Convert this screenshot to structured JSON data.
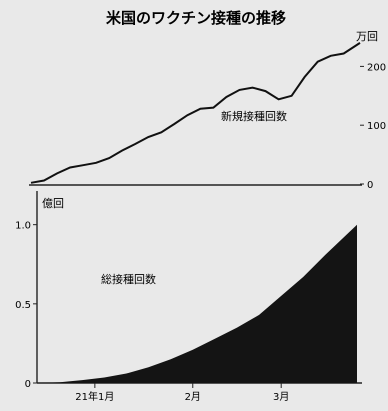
{
  "title": "米国のワクチン接種の推移",
  "chart_data": [
    {
      "type": "line",
      "series_label": "新規接種回数",
      "unit": "万回",
      "y_ticks": [
        "0",
        "100",
        "200"
      ],
      "ylim": [
        0,
        250
      ],
      "x_range": [
        "2020-12-14",
        "2021-03-25"
      ],
      "x": [
        "2020-12-14",
        "2020-12-18",
        "2020-12-22",
        "2020-12-26",
        "2020-12-30",
        "2021-01-03",
        "2021-01-07",
        "2021-01-11",
        "2021-01-15",
        "2021-01-19",
        "2021-01-23",
        "2021-01-27",
        "2021-01-31",
        "2021-02-04",
        "2021-02-08",
        "2021-02-12",
        "2021-02-16",
        "2021-02-20",
        "2021-02-24",
        "2021-02-28",
        "2021-03-04",
        "2021-03-08",
        "2021-03-12",
        "2021-03-16",
        "2021-03-20",
        "2021-03-25"
      ],
      "y": [
        2,
        6,
        18,
        28,
        32,
        36,
        44,
        57,
        68,
        80,
        88,
        102,
        117,
        128,
        130,
        148,
        160,
        164,
        158,
        144,
        150,
        182,
        208,
        218,
        222,
        240
      ]
    },
    {
      "type": "bar",
      "series_label": "総接種回数",
      "unit": "億回",
      "y_ticks": [
        "0",
        "0.5",
        "1.0"
      ],
      "ylim": [
        0,
        1.2
      ],
      "x_ticks": [
        {
          "label": "21年1月",
          "date": "2021-01-01"
        },
        {
          "label": "2月",
          "date": "2021-02-01"
        },
        {
          "label": "3月",
          "date": "2021-03-01"
        }
      ],
      "x_range": [
        "2020-12-14",
        "2021-03-25"
      ],
      "x": [
        "2020-12-14",
        "2020-12-21",
        "2020-12-28",
        "2021-01-04",
        "2021-01-11",
        "2021-01-18",
        "2021-01-25",
        "2021-02-01",
        "2021-02-08",
        "2021-02-15",
        "2021-02-22",
        "2021-03-01",
        "2021-03-08",
        "2021-03-15",
        "2021-03-25"
      ],
      "y": [
        0.0,
        0.005,
        0.018,
        0.035,
        0.06,
        0.1,
        0.15,
        0.21,
        0.28,
        0.35,
        0.43,
        0.55,
        0.67,
        0.81,
        1.0
      ]
    }
  ]
}
